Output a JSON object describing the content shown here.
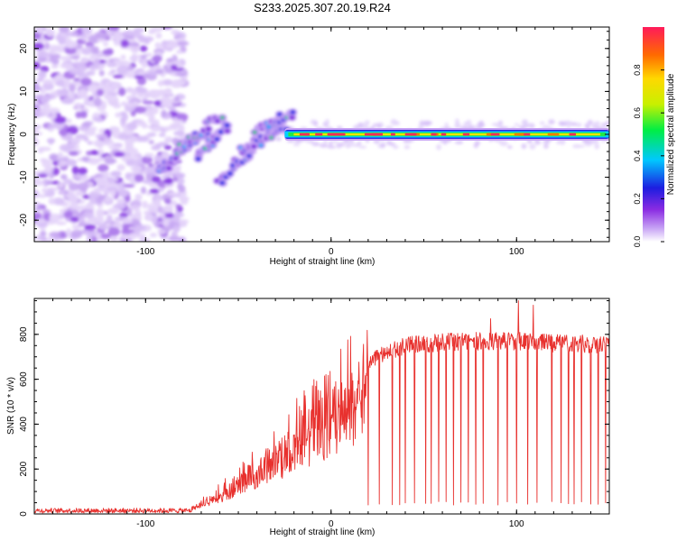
{
  "chart_data": [
    {
      "type": "heatmap",
      "title": "S233.2025.307.20.19.R24",
      "xlabel": "Height of straight line (km)",
      "ylabel": "Frequency (Hz)",
      "xlim": [
        -160,
        150
      ],
      "ylim": [
        -25,
        25
      ],
      "xticks": [
        {
          "value": -100,
          "label": "-100"
        },
        {
          "value": 0,
          "label": "0"
        },
        {
          "value": 100,
          "label": "100"
        }
      ],
      "yticks": [
        {
          "value": -20,
          "label": "-20"
        },
        {
          "value": -10,
          "label": "-10"
        },
        {
          "value": 0,
          "label": "0"
        },
        {
          "value": 10,
          "label": "10"
        },
        {
          "value": 20,
          "label": "20"
        }
      ],
      "colorbar": {
        "label": "Normalized spectral amplitude",
        "range": [
          0,
          1
        ],
        "ticks": [
          {
            "value": 0.0,
            "label": "0.0"
          },
          {
            "value": 0.2,
            "label": "0.2"
          },
          {
            "value": 0.4,
            "label": "0.4"
          },
          {
            "value": 0.6,
            "label": "0.6"
          },
          {
            "value": 0.8,
            "label": "0.8"
          }
        ]
      },
      "noise_region_x": [
        -160,
        -79
      ],
      "carrier_line": {
        "x_start": -25,
        "x_end": 150,
        "frequency": 0
      },
      "tracks": [
        {
          "x_start": -92,
          "x_end": -76,
          "f_start": -9,
          "f_end": -1
        },
        {
          "x_start": -80,
          "x_end": -60,
          "f_start": -3,
          "f_end": 4
        },
        {
          "x_start": -72,
          "x_end": -55,
          "f_start": -5,
          "f_end": 2
        },
        {
          "x_start": -60,
          "x_end": -40,
          "f_start": -11,
          "f_end": -2
        },
        {
          "x_start": -48,
          "x_end": -25,
          "f_start": -4,
          "f_end": 2
        },
        {
          "x_start": -40,
          "x_end": -20,
          "f_start": 1,
          "f_end": 5
        }
      ]
    },
    {
      "type": "line",
      "xlabel": "Height of straight line (km)",
      "ylabel": "SNR (10 * v/v)",
      "xlim": [
        -160,
        150
      ],
      "ylim": [
        0,
        960
      ],
      "xticks": [
        {
          "value": -100,
          "label": "-100"
        },
        {
          "value": 0,
          "label": "0"
        },
        {
          "value": 100,
          "label": "100"
        }
      ],
      "yticks": [
        {
          "value": 0,
          "label": "0"
        },
        {
          "value": 200,
          "label": "200"
        },
        {
          "value": 400,
          "label": "400"
        },
        {
          "value": 600,
          "label": "600"
        },
        {
          "value": 800,
          "label": "800"
        }
      ],
      "series": [
        {
          "name": "SNR",
          "color": "#e8312e",
          "envelope": {
            "x": [
              -160,
              -120,
              -90,
              -80,
              -72,
              -65,
              -60,
              -50,
              -40,
              -30,
              -20,
              -10,
              0,
              10,
              20,
              30,
              40,
              60,
              80,
              100,
              120,
              150
            ],
            "y": [
              12,
              12,
              14,
              20,
              45,
              80,
              110,
              180,
              250,
              320,
              400,
              480,
              560,
              650,
              720,
              760,
              790,
              805,
              810,
              810,
              800,
              795
            ]
          },
          "dropouts_x": [
            20,
            26,
            33,
            37,
            40,
            45,
            51,
            54,
            58,
            62,
            66,
            70,
            74,
            78,
            82,
            86,
            90,
            95,
            100,
            106,
            111,
            119,
            124,
            128,
            131,
            135,
            140,
            144,
            148
          ],
          "peaks": [
            {
              "x": 101,
              "y": 950
            },
            {
              "x": 109,
              "y": 930
            },
            {
              "x": 86,
              "y": 870
            }
          ]
        }
      ]
    }
  ]
}
